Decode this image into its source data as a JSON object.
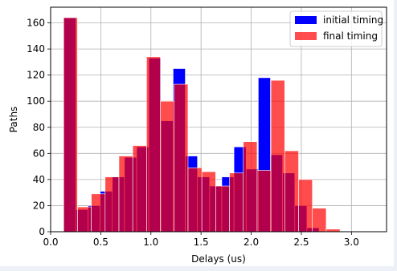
{
  "chart_data": {
    "type": "bar",
    "subtype": "overlaid histogram",
    "title": "",
    "xlabel": "Delays (us)",
    "ylabel": "Paths",
    "xlim": [
      0.0,
      3.35
    ],
    "ylim": [
      0,
      172
    ],
    "xticks": [
      "0.0",
      "0.5",
      "1.0",
      "1.5",
      "2.0",
      "2.5",
      "3.0"
    ],
    "yticks": [
      "0",
      "20",
      "40",
      "60",
      "80",
      "100",
      "120",
      "140",
      "160"
    ],
    "grid": true,
    "legend_position": "top-right",
    "series": [
      {
        "name": "initial timing",
        "color": "#0000ff",
        "alpha": 1.0,
        "bin_width": 0.1213,
        "bin_starts": [
          0.13,
          0.2513,
          0.3726,
          0.4939,
          0.6152,
          0.7365,
          0.8578,
          0.9791,
          1.1004,
          1.2217,
          1.343,
          1.4643,
          1.5856,
          1.7069,
          1.8282,
          1.9495,
          2.0708,
          2.1921,
          2.3134,
          2.4347,
          2.556,
          2.6773
        ],
        "values": [
          164,
          17,
          20,
          31,
          42,
          57,
          65,
          133,
          85,
          125,
          58,
          42,
          35,
          42,
          65,
          48,
          118,
          59,
          45,
          20,
          3,
          0
        ]
      },
      {
        "name": "final timing",
        "color": "#ff0000",
        "alpha": 0.7,
        "bin_width": 0.1378,
        "bin_starts": [
          0.13,
          0.2678,
          0.4056,
          0.5434,
          0.6812,
          0.819,
          0.9568,
          1.0946,
          1.2324,
          1.3702,
          1.508,
          1.6458,
          1.7836,
          1.9214,
          2.0592,
          2.197,
          2.3348,
          2.4726,
          2.6104,
          2.7482,
          2.886,
          3.0238
        ],
        "values": [
          164,
          19,
          29,
          42,
          58,
          66,
          134,
          100,
          113,
          49,
          46,
          35,
          45,
          69,
          47,
          116,
          62,
          40,
          18,
          2,
          0,
          0
        ]
      }
    ]
  }
}
